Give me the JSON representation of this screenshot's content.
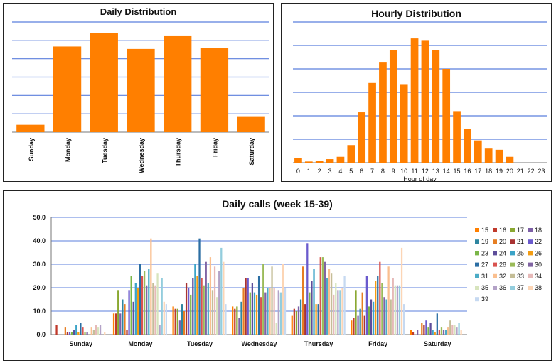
{
  "colors": {
    "bar": "#ff7f00",
    "gridline": "#5b7fdd",
    "axis": "#777777",
    "text": "#111111"
  },
  "chart_data": [
    {
      "id": "daily",
      "type": "bar",
      "title": "Daily Distribution",
      "xlabel": "",
      "ylabel": "",
      "categories": [
        "Sunday",
        "Monday",
        "Tuesday",
        "Wednesday",
        "Thursday",
        "Friday",
        "Saturday"
      ],
      "values": [
        6,
        70,
        81,
        68,
        79,
        69,
        13
      ],
      "ylim": [
        0,
        90
      ],
      "grid": true,
      "y_tick_labels_visible": false
    },
    {
      "id": "hourly",
      "type": "bar",
      "title": "Hourly Distribution",
      "xlabel": "Hour of day",
      "ylabel": "",
      "categories": [
        "0",
        "1",
        "2",
        "3",
        "4",
        "5",
        "6",
        "7",
        "8",
        "9",
        "10",
        "11",
        "12",
        "13",
        "14",
        "15",
        "16",
        "17",
        "18",
        "19",
        "20",
        "21",
        "22",
        "23"
      ],
      "values": [
        4,
        1,
        1.5,
        3,
        5,
        15,
        43,
        68,
        86,
        96,
        67,
        106,
        104,
        96,
        80,
        44,
        29,
        19,
        12,
        11,
        5,
        null,
        null,
        null
      ],
      "ylim": [
        0,
        120
      ],
      "grid": true,
      "y_tick_labels_visible": false
    },
    {
      "id": "weekly",
      "type": "bar",
      "title": "Daily calls (week 15-39)",
      "xlabel": "",
      "ylabel": "",
      "categories": [
        "Sunday",
        "Monday",
        "Tuesday",
        "Wednesday",
        "Thursday",
        "Friday",
        "Saturday"
      ],
      "ylim": [
        0,
        50
      ],
      "yticks": [
        "0.0",
        "10.0",
        "20.0",
        "30.0",
        "40.0",
        "50.0"
      ],
      "grid": true,
      "legend": "right",
      "series": [
        {
          "name": "15",
          "color": "#ff7f00",
          "values": [
            0,
            9,
            12,
            12,
            8,
            6,
            2
          ]
        },
        {
          "name": "16",
          "color": "#c0392b",
          "values": [
            4,
            9,
            11,
            11,
            11,
            7,
            1
          ]
        },
        {
          "name": "17",
          "color": "#8aa832",
          "values": [
            0,
            19,
            11,
            12,
            10,
            19,
            0
          ]
        },
        {
          "name": "18",
          "color": "#7d5fa6",
          "values": [
            0,
            9,
            6,
            7,
            12,
            8,
            2
          ]
        },
        {
          "name": "19",
          "color": "#2e86a0",
          "values": [
            0,
            15,
            13,
            14,
            15,
            11,
            0
          ]
        },
        {
          "name": "20",
          "color": "#e67e22",
          "values": [
            3,
            13,
            10,
            20,
            29,
            18,
            5
          ]
        },
        {
          "name": "21",
          "color": "#a83232",
          "values": [
            1,
            2,
            22,
            24,
            13,
            8,
            4
          ]
        },
        {
          "name": "22",
          "color": "#6a5acd",
          "values": [
            1,
            19,
            20,
            24,
            39,
            25,
            6
          ]
        },
        {
          "name": "23",
          "color": "#7ab648",
          "values": [
            1,
            25,
            17,
            18,
            18,
            12,
            3
          ]
        },
        {
          "name": "24",
          "color": "#5d4d9a",
          "values": [
            2,
            14,
            24,
            22,
            23,
            15,
            5
          ]
        },
        {
          "name": "25",
          "color": "#3ba3c7",
          "values": [
            4,
            22,
            30,
            18,
            28,
            14,
            2
          ]
        },
        {
          "name": "26",
          "color": "#f39c12",
          "values": [
            1,
            20,
            25,
            17,
            13,
            23,
            1
          ]
        },
        {
          "name": "27",
          "color": "#2b6ea3",
          "values": [
            5,
            30,
            41,
            25,
            13,
            25,
            9
          ]
        },
        {
          "name": "28",
          "color": "#d9534f",
          "values": [
            3,
            25,
            24,
            16,
            33,
            31,
            2
          ]
        },
        {
          "name": "29",
          "color": "#9bbb59",
          "values": [
            1,
            27,
            21,
            30,
            33,
            22,
            3
          ]
        },
        {
          "name": "30",
          "color": "#8064a2",
          "values": [
            1,
            21,
            31,
            18,
            31,
            16,
            2
          ]
        },
        {
          "name": "31",
          "color": "#4bacc6",
          "values": [
            0,
            28,
            22,
            20,
            24,
            15,
            2
          ]
        },
        {
          "name": "32",
          "color": "#fabf8f",
          "values": [
            3,
            41,
            33,
            20,
            28,
            29,
            3
          ]
        },
        {
          "name": "33",
          "color": "#c4bd97",
          "values": [
            2,
            22,
            19,
            29,
            26,
            15,
            6
          ]
        },
        {
          "name": "34",
          "color": "#e6b9b8",
          "values": [
            4,
            21,
            29,
            20,
            17,
            24,
            4
          ]
        },
        {
          "name": "35",
          "color": "#d7e4bd",
          "values": [
            3,
            26,
            16,
            5,
            22,
            21,
            4
          ]
        },
        {
          "name": "36",
          "color": "#b3a2c7",
          "values": [
            4,
            4,
            27,
            19,
            19,
            21,
            3
          ]
        },
        {
          "name": "37",
          "color": "#93cddd",
          "values": [
            0,
            24,
            37,
            18,
            19,
            21,
            5
          ]
        },
        {
          "name": "38",
          "color": "#fcd5b5",
          "values": [
            1,
            14,
            31,
            30,
            20,
            37,
            2
          ]
        },
        {
          "name": "39",
          "color": "#c6d9f1",
          "values": [
            0,
            13,
            13,
            20,
            25,
            13,
            0
          ]
        }
      ]
    }
  ]
}
